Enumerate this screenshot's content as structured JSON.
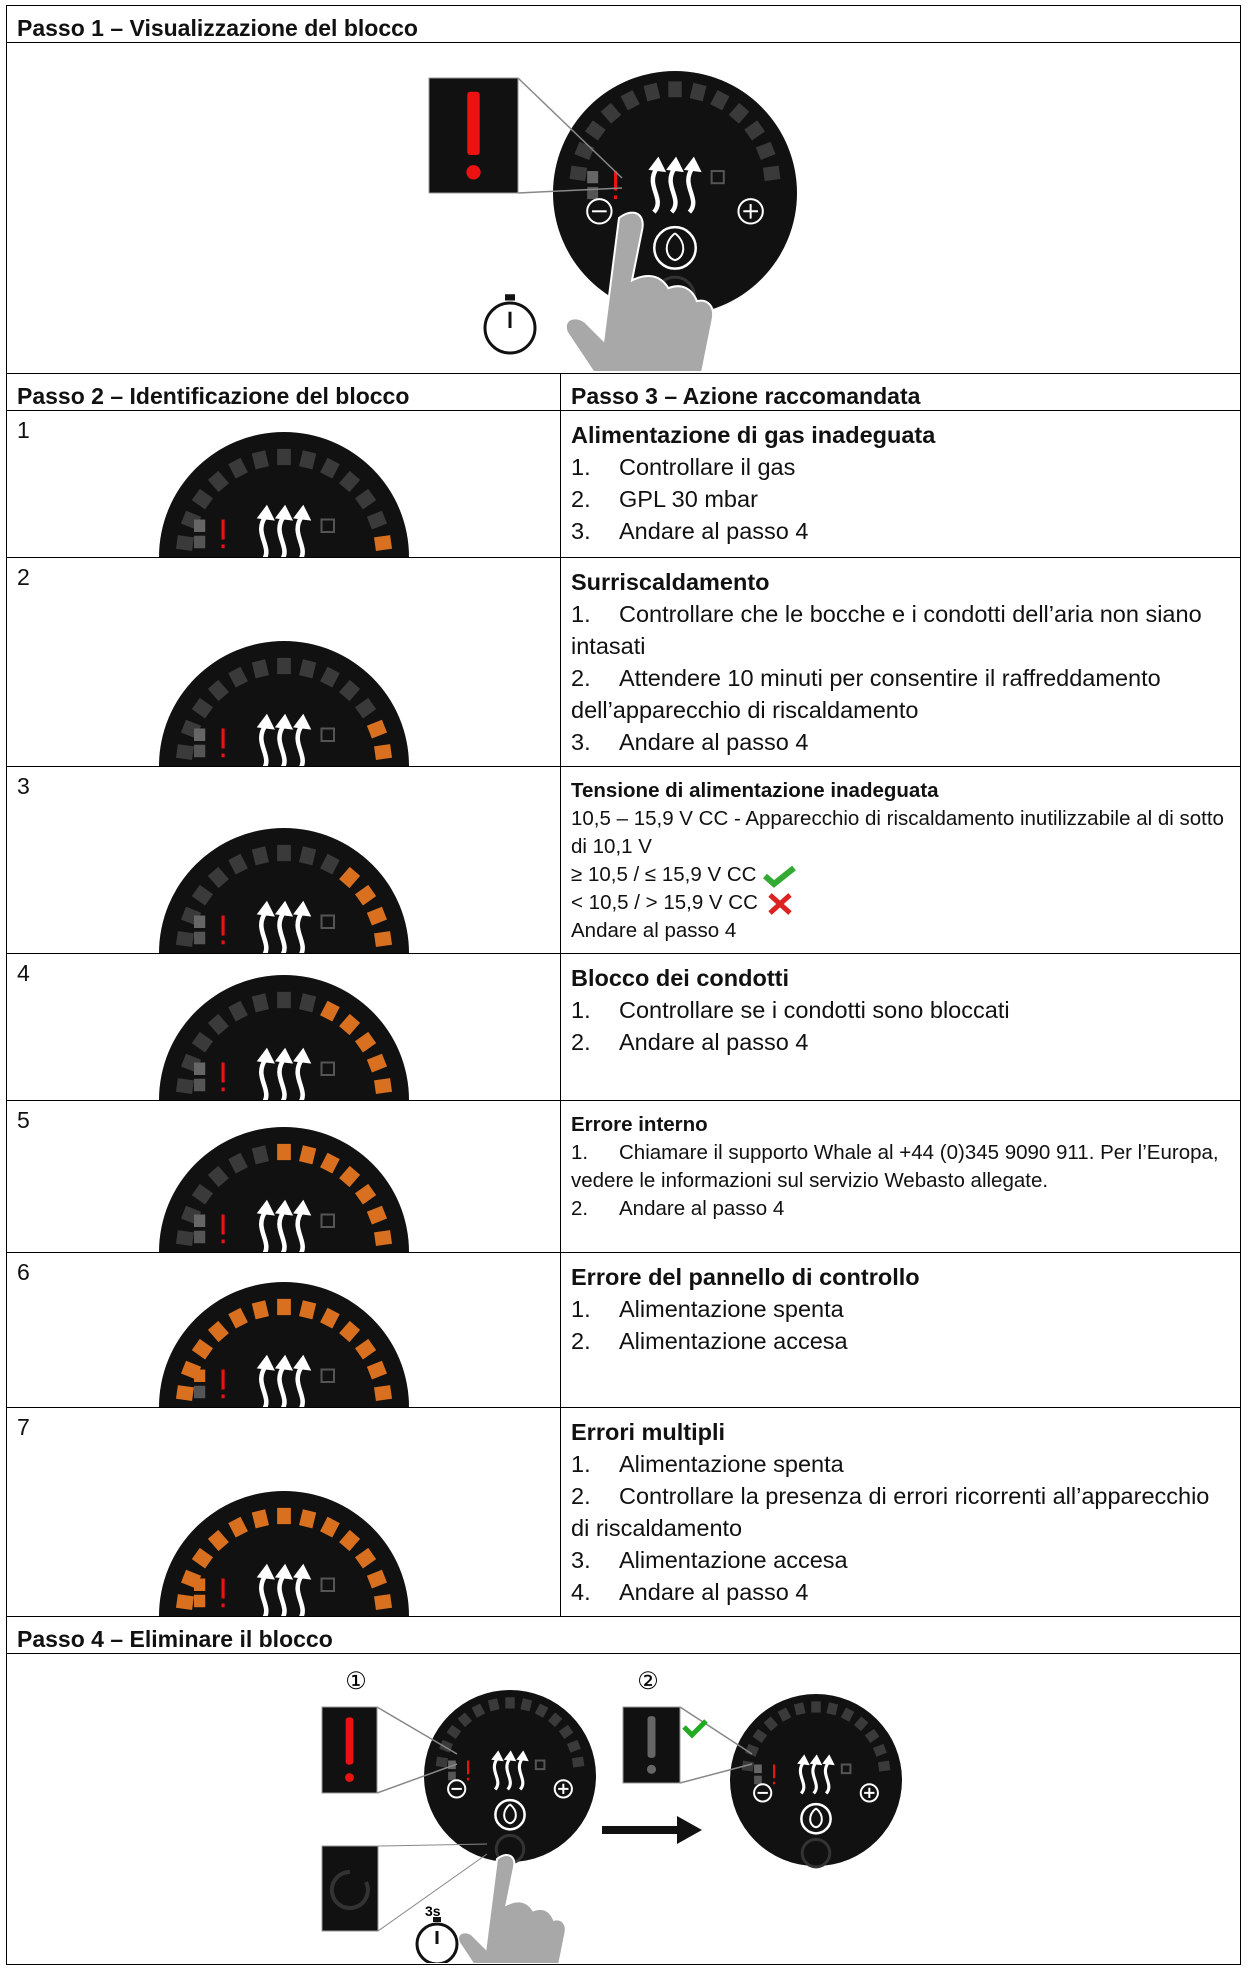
{
  "step1": {
    "title": "Passo 1 – Visualizzazione del blocco"
  },
  "step2": {
    "title": "Passo 2 – Identificazione del blocco"
  },
  "step3": {
    "title": "Passo 3 – Azione raccomandata"
  },
  "rows": [
    {
      "number": "1",
      "title": "Alimentazione di gas inadeguata",
      "items": [
        {
          "n": "1.",
          "text": "Controllare il gas"
        },
        {
          "n": "2.",
          "text": "GPL 30 mbar"
        },
        {
          "n": "3.",
          "text": "Andare al passo 4"
        }
      ]
    },
    {
      "number": "2",
      "title": "Surriscaldamento",
      "items": [
        {
          "n": "1.",
          "text": "Controllare che le bocche e i condotti dell’aria non siano intasati"
        },
        {
          "n": "2.",
          "text": "Attendere 10 minuti per consentire il raffreddamento dell’apparecchio di riscaldamento"
        },
        {
          "n": "3.",
          "text": "Andare al passo 4"
        }
      ]
    },
    {
      "number": "3",
      "title": "Tensione di alimentazione inadeguata",
      "lines": [
        "10,5 – 15,9 V CC - Apparecchio di riscaldamento inutilizzabile al di sotto di 10,1 V",
        "≥ 10,5 / ≤ 15,9 V CC",
        "< 10,5 / > 15,9 V CC",
        "Andare al passo 4"
      ]
    },
    {
      "number": "4",
      "title": "Blocco dei condotti",
      "items": [
        {
          "n": "1.",
          "text": "Controllare se i condotti sono bloccati"
        },
        {
          "n": "2.",
          "text": "Andare al passo 4"
        }
      ]
    },
    {
      "number": "5",
      "title": "Errore interno",
      "items": [
        {
          "n": "1.",
          "text": "Chiamare il supporto Whale al +44 (0)345 9090 911. Per l’Europa, vedere le informazioni sul servizio Webasto allegate."
        },
        {
          "n": "2.",
          "text": "Andare al passo 4"
        }
      ]
    },
    {
      "number": "6",
      "title": "Errore del pannello di controllo",
      "items": [
        {
          "n": "1.",
          "text": "Alimentazione spenta"
        },
        {
          "n": "2.",
          "text": "Alimentazione accesa"
        }
      ]
    },
    {
      "number": "7",
      "title": "Errori multipli",
      "items": [
        {
          "n": "1.",
          "text": "Alimentazione spenta"
        },
        {
          "n": "2.",
          "text": "Controllare la presenza di errori ricorrenti all’apparecchio di riscaldamento"
        },
        {
          "n": "3.",
          "text": "Alimentazione accesa"
        },
        {
          "n": "4.",
          "text": "Andare al passo 4"
        }
      ]
    }
  ],
  "step4": {
    "title": "Passo 4 – Eliminare il blocco",
    "labels": [
      "①",
      "②"
    ],
    "hold": "3s"
  }
}
